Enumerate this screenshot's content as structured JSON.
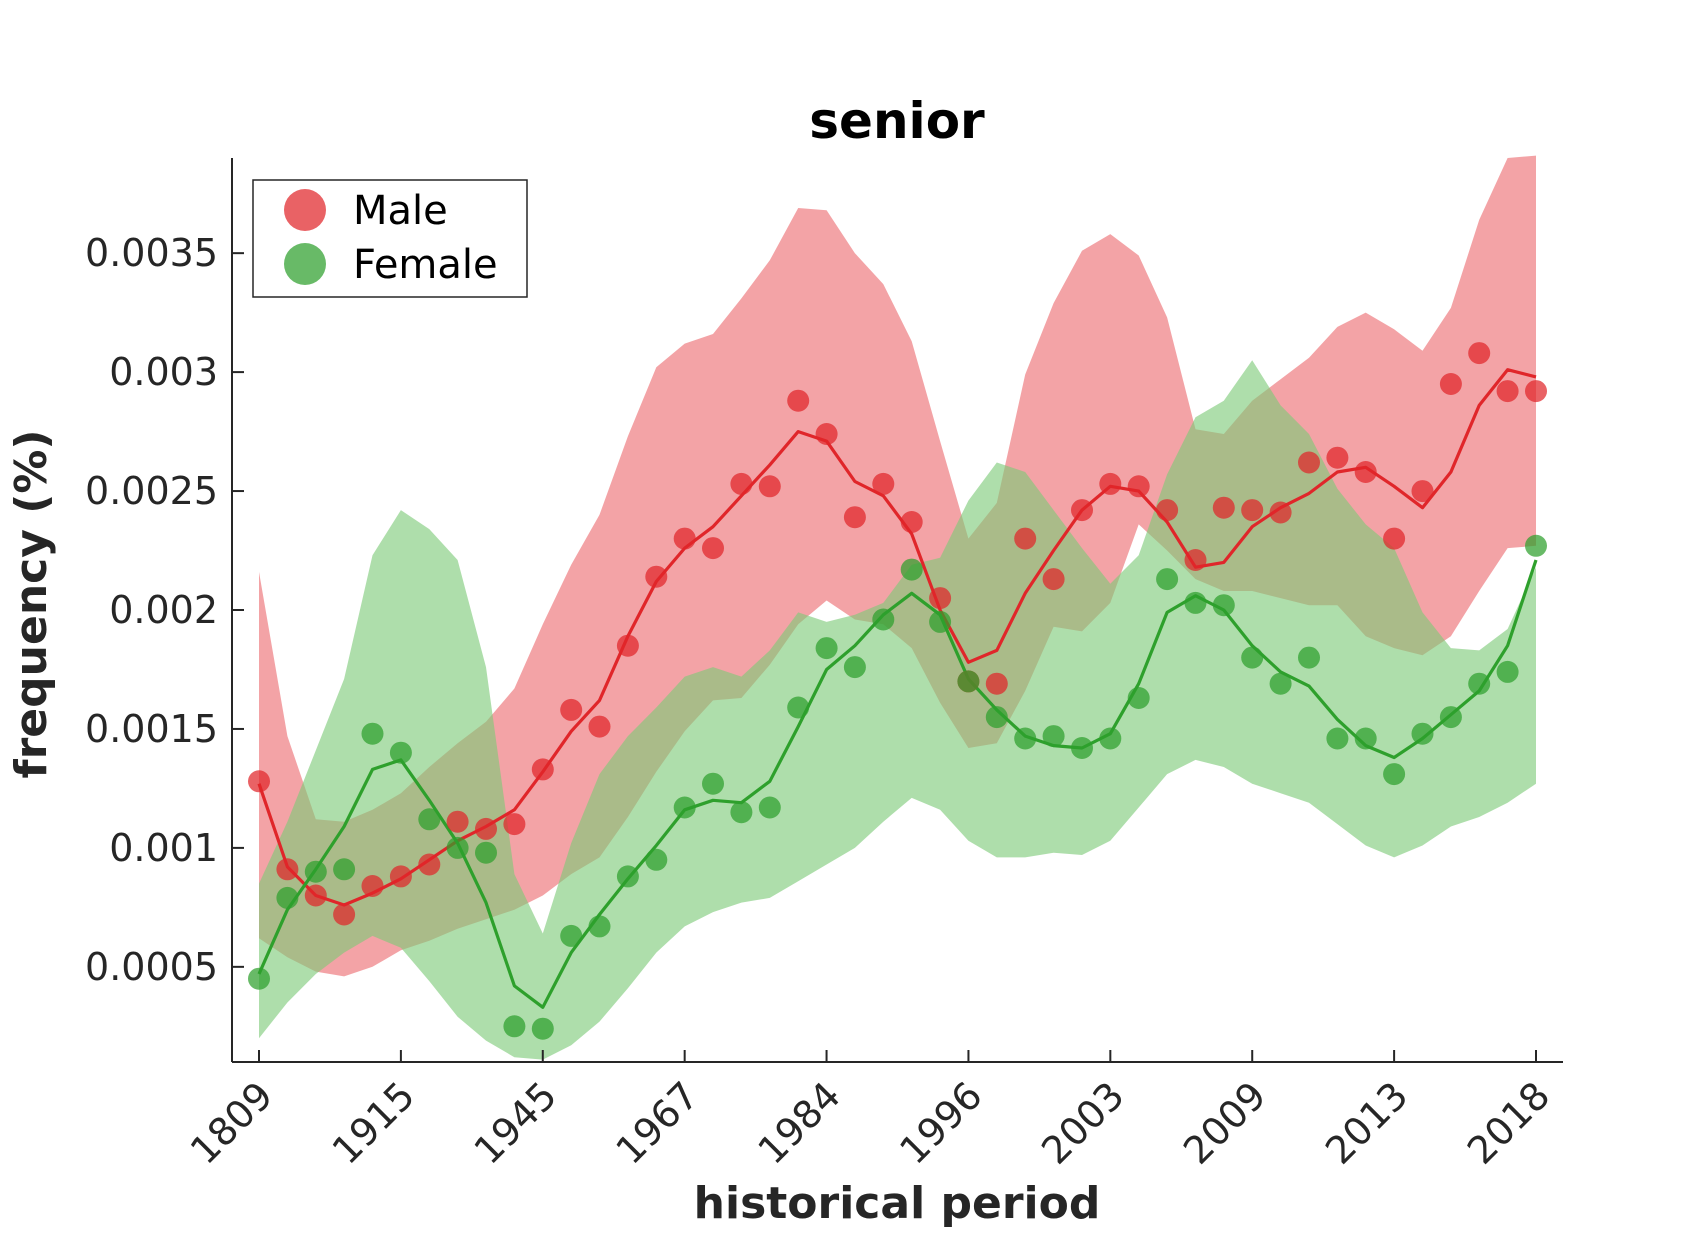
{
  "chart_data": {
    "type": "line",
    "title": "senior",
    "xlabel": "historical period",
    "ylabel": "frequency (%)",
    "x_tick_labels": [
      "1809",
      "1915",
      "1945",
      "1967",
      "1984",
      "1996",
      "2003",
      "2009",
      "2013",
      "2018"
    ],
    "x_tick_indices": [
      0,
      5,
      10,
      15,
      20,
      25,
      30,
      35,
      40,
      45
    ],
    "n_points": 46,
    "ylim": [
      0.0001,
      0.0039
    ],
    "y_ticks": [
      0.0005,
      0.001,
      0.0015,
      0.002,
      0.0025,
      0.003,
      0.0035
    ],
    "y_tick_labels": [
      "0.0005",
      "0.001",
      "0.0015",
      "0.002",
      "0.0025",
      "0.003",
      "0.0035"
    ],
    "legend": {
      "position": "top-left",
      "entries": [
        "Male",
        "Female"
      ]
    },
    "series": [
      {
        "name": "Male",
        "color": "#e0262a",
        "band_color": "#ec6a6f",
        "points": [
          0.00128,
          0.00091,
          0.0008,
          0.00072,
          0.00084,
          0.00088,
          0.00093,
          0.00111,
          0.00108,
          0.0011,
          0.00133,
          0.00158,
          0.00151,
          0.00185,
          0.00214,
          0.0023,
          0.00226,
          0.00253,
          0.00252,
          0.00288,
          0.00274,
          0.00239,
          0.00253,
          0.00237,
          0.00205,
          0.0017,
          0.00169,
          0.0023,
          0.00213,
          0.00242,
          0.00253,
          0.00252,
          0.00242,
          0.00221,
          0.00243,
          0.00242,
          0.00241,
          0.00262,
          0.00264,
          0.00258,
          0.0023,
          0.0025,
          0.00295,
          0.00308,
          0.00292,
          0.00292
        ],
        "trend": [
          0.00127,
          0.00092,
          0.0008,
          0.00076,
          0.00081,
          0.00087,
          0.00095,
          0.00103,
          0.00109,
          0.00116,
          0.00132,
          0.00149,
          0.00162,
          0.00189,
          0.00212,
          0.00226,
          0.00235,
          0.00248,
          0.00261,
          0.00275,
          0.00271,
          0.00254,
          0.00248,
          0.00232,
          0.002,
          0.00178,
          0.00183,
          0.00207,
          0.00225,
          0.00242,
          0.00252,
          0.0025,
          0.00237,
          0.00218,
          0.0022,
          0.00235,
          0.00243,
          0.00249,
          0.00258,
          0.0026,
          0.00252,
          0.00243,
          0.00258,
          0.00286,
          0.00301,
          0.00298
        ],
        "upper": [
          0.00216,
          0.00147,
          0.00112,
          0.00111,
          0.00116,
          0.00123,
          0.00134,
          0.00144,
          0.00153,
          0.00167,
          0.00194,
          0.00219,
          0.0024,
          0.00273,
          0.00302,
          0.00312,
          0.00316,
          0.00331,
          0.00347,
          0.00369,
          0.00368,
          0.0035,
          0.00337,
          0.00313,
          0.00271,
          0.0023,
          0.00245,
          0.00299,
          0.00329,
          0.00351,
          0.00358,
          0.00349,
          0.00323,
          0.00276,
          0.00274,
          0.00288,
          0.00297,
          0.00306,
          0.00319,
          0.00325,
          0.00318,
          0.00309,
          0.00327,
          0.00364,
          0.0039,
          0.00391
        ],
        "lower": [
          0.00062,
          0.00054,
          0.00048,
          0.00046,
          0.0005,
          0.00057,
          0.00061,
          0.00066,
          0.0007,
          0.00074,
          0.0008,
          0.00089,
          0.00096,
          0.00113,
          0.00132,
          0.00149,
          0.00162,
          0.00163,
          0.00177,
          0.00194,
          0.00204,
          0.00196,
          0.00194,
          0.00184,
          0.00161,
          0.00142,
          0.00144,
          0.00166,
          0.00193,
          0.00191,
          0.00203,
          0.00236,
          0.00225,
          0.00213,
          0.00208,
          0.00208,
          0.00205,
          0.00202,
          0.00202,
          0.00189,
          0.00184,
          0.00181,
          0.00189,
          0.00208,
          0.00226,
          0.00227
        ]
      },
      {
        "name": "Female",
        "color": "#2ea02c",
        "band_color": "#7dca78",
        "points": [
          0.00045,
          0.00079,
          0.0009,
          0.00091,
          0.00148,
          0.0014,
          0.00112,
          0.001,
          0.00098,
          0.00025,
          0.00024,
          0.00063,
          0.00067,
          0.00088,
          0.00095,
          0.00117,
          0.00127,
          0.00115,
          0.00117,
          0.00159,
          0.00184,
          0.00176,
          0.00196,
          0.00217,
          0.00195,
          0.0017,
          0.00155,
          0.00146,
          0.00147,
          0.00142,
          0.00146,
          0.00163,
          0.00213,
          0.00203,
          0.00202,
          0.0018,
          0.00169,
          0.0018,
          0.00146,
          0.00146,
          0.00131,
          0.00148,
          0.00155,
          0.00169,
          0.00174,
          0.00227
        ],
        "trend": [
          0.00047,
          0.00074,
          0.00091,
          0.00109,
          0.00133,
          0.00137,
          0.0012,
          0.00102,
          0.00077,
          0.00042,
          0.00033,
          0.00056,
          0.00072,
          0.00087,
          0.00101,
          0.00116,
          0.0012,
          0.00119,
          0.00128,
          0.00151,
          0.00175,
          0.00185,
          0.00198,
          0.00207,
          0.00198,
          0.00171,
          0.00158,
          0.00147,
          0.00143,
          0.00142,
          0.00148,
          0.00169,
          0.00199,
          0.00206,
          0.002,
          0.00185,
          0.00174,
          0.00168,
          0.00154,
          0.00143,
          0.00138,
          0.00146,
          0.00156,
          0.00166,
          0.00185,
          0.00221
        ],
        "upper": [
          0.00085,
          0.00111,
          0.00141,
          0.00171,
          0.00223,
          0.00242,
          0.00234,
          0.00221,
          0.00176,
          0.00089,
          0.00064,
          0.00102,
          0.00131,
          0.00147,
          0.00159,
          0.00172,
          0.00176,
          0.00172,
          0.00183,
          0.00199,
          0.00195,
          0.00198,
          0.00203,
          0.00219,
          0.00222,
          0.00246,
          0.00262,
          0.00258,
          0.00242,
          0.00226,
          0.00211,
          0.00223,
          0.00257,
          0.00281,
          0.00288,
          0.00305,
          0.00286,
          0.00274,
          0.00251,
          0.00236,
          0.00226,
          0.00199,
          0.00184,
          0.00183,
          0.00192,
          0.00218
        ],
        "lower": [
          0.0002,
          0.00035,
          0.00047,
          0.00056,
          0.00063,
          0.00058,
          0.00044,
          0.00029,
          0.00019,
          0.00012,
          0.00011,
          0.00017,
          0.00027,
          0.00041,
          0.00056,
          0.00067,
          0.00073,
          0.00077,
          0.00079,
          0.00086,
          0.00093,
          0.001,
          0.00111,
          0.00121,
          0.00116,
          0.00103,
          0.00096,
          0.00096,
          0.00098,
          0.00097,
          0.00103,
          0.00117,
          0.00131,
          0.00137,
          0.00134,
          0.00127,
          0.00123,
          0.00119,
          0.0011,
          0.00101,
          0.00096,
          0.00101,
          0.00109,
          0.00113,
          0.00119,
          0.00127
        ]
      }
    ]
  }
}
